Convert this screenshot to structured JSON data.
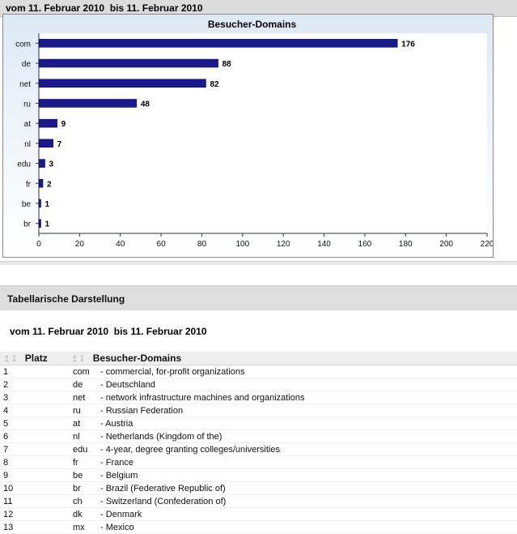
{
  "period": {
    "from_label": "vom",
    "from_date": "11. Februar 2010",
    "to_label": "bis",
    "to_date": "11. Februar 2010"
  },
  "chart_data": {
    "type": "bar",
    "orientation": "horizontal",
    "title": "Besucher-Domains",
    "categories": [
      "com",
      "de",
      "net",
      "ru",
      "at",
      "nl",
      "edu",
      "fr",
      "be",
      "br"
    ],
    "values": [
      176,
      88,
      82,
      48,
      9,
      7,
      3,
      2,
      1,
      1
    ],
    "xlim": [
      0,
      220
    ],
    "xticks": [
      0,
      20,
      40,
      60,
      80,
      100,
      120,
      140,
      160,
      180,
      200,
      220
    ],
    "xlabel": "",
    "ylabel": "",
    "bar_color": "#1a1a8c",
    "grid": false,
    "legend": "none"
  },
  "table": {
    "title": "Tabellarische Darstellung",
    "sort_icons": "up-down-arrows-icon",
    "columns": [
      "Platz",
      "Besucher-Domains"
    ],
    "rows": [
      {
        "rank": "1",
        "code": "com",
        "desc": "- commercial, for-profit organizations"
      },
      {
        "rank": "2",
        "code": "de",
        "desc": "- Deutschland"
      },
      {
        "rank": "3",
        "code": "net",
        "desc": "- network infrastructure machines and organizations"
      },
      {
        "rank": "4",
        "code": "ru",
        "desc": "- Russian Federation"
      },
      {
        "rank": "5",
        "code": "at",
        "desc": "- Austria"
      },
      {
        "rank": "6",
        "code": "nl",
        "desc": "- Netherlands (Kingdom of the)"
      },
      {
        "rank": "7",
        "code": "edu",
        "desc": "- 4-year, degree granting colleges/universities"
      },
      {
        "rank": "8",
        "code": "fr",
        "desc": "- France"
      },
      {
        "rank": "9",
        "code": "be",
        "desc": "- Belgium"
      },
      {
        "rank": "10",
        "code": "br",
        "desc": "- Brazil (Federative Republic of)"
      },
      {
        "rank": "11",
        "code": "ch",
        "desc": "- Switzerland (Confederation of)"
      },
      {
        "rank": "12",
        "code": "dk",
        "desc": "- Denmark"
      },
      {
        "rank": "13",
        "code": "mx",
        "desc": "- Mexico"
      }
    ]
  }
}
